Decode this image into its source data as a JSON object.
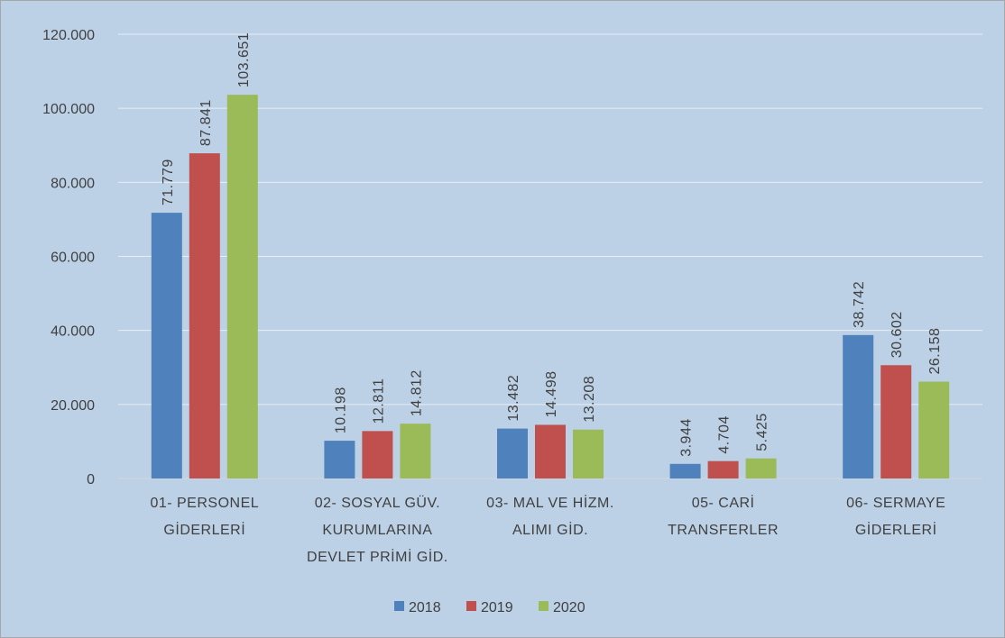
{
  "chart_data": {
    "type": "bar",
    "categories": [
      [
        "01- PERSONEL",
        "GİDERLERİ"
      ],
      [
        "02- SOSYAL GÜV.",
        "KURUMLARINA",
        "DEVLET PRİMİ GİD."
      ],
      [
        "03- MAL VE HİZM.",
        "ALIMI GİD."
      ],
      [
        "05- CARİ",
        "TRANSFERLER"
      ],
      [
        "06- SERMAYE",
        "GİDERLERİ"
      ]
    ],
    "series": [
      {
        "name": "2018",
        "color": "#4f81bd",
        "values": [
          71779,
          10198,
          13482,
          3944,
          38742
        ],
        "labels": [
          "71.779",
          "10.198",
          "13.482",
          "3.944",
          "38.742"
        ]
      },
      {
        "name": "2019",
        "color": "#c0504d",
        "values": [
          87841,
          12811,
          14498,
          4704,
          30602
        ],
        "labels": [
          "87.841",
          "12.811",
          "14.498",
          "4.704",
          "30.602"
        ]
      },
      {
        "name": "2020",
        "color": "#9bbb59",
        "values": [
          103651,
          14812,
          13208,
          5425,
          26158
        ],
        "labels": [
          "103.651",
          "14.812",
          "13.208",
          "5.425",
          "26.158"
        ]
      }
    ],
    "yticks": [
      0,
      20000,
      40000,
      60000,
      80000,
      100000,
      120000
    ],
    "ytick_labels": [
      "0",
      "20.000",
      "40.000",
      "60.000",
      "80.000",
      "100.000",
      "120.000"
    ],
    "ylim": [
      0,
      120000
    ],
    "grid": true,
    "legend_position": "bottom-center",
    "title": "",
    "xlabel": "",
    "ylabel": ""
  }
}
